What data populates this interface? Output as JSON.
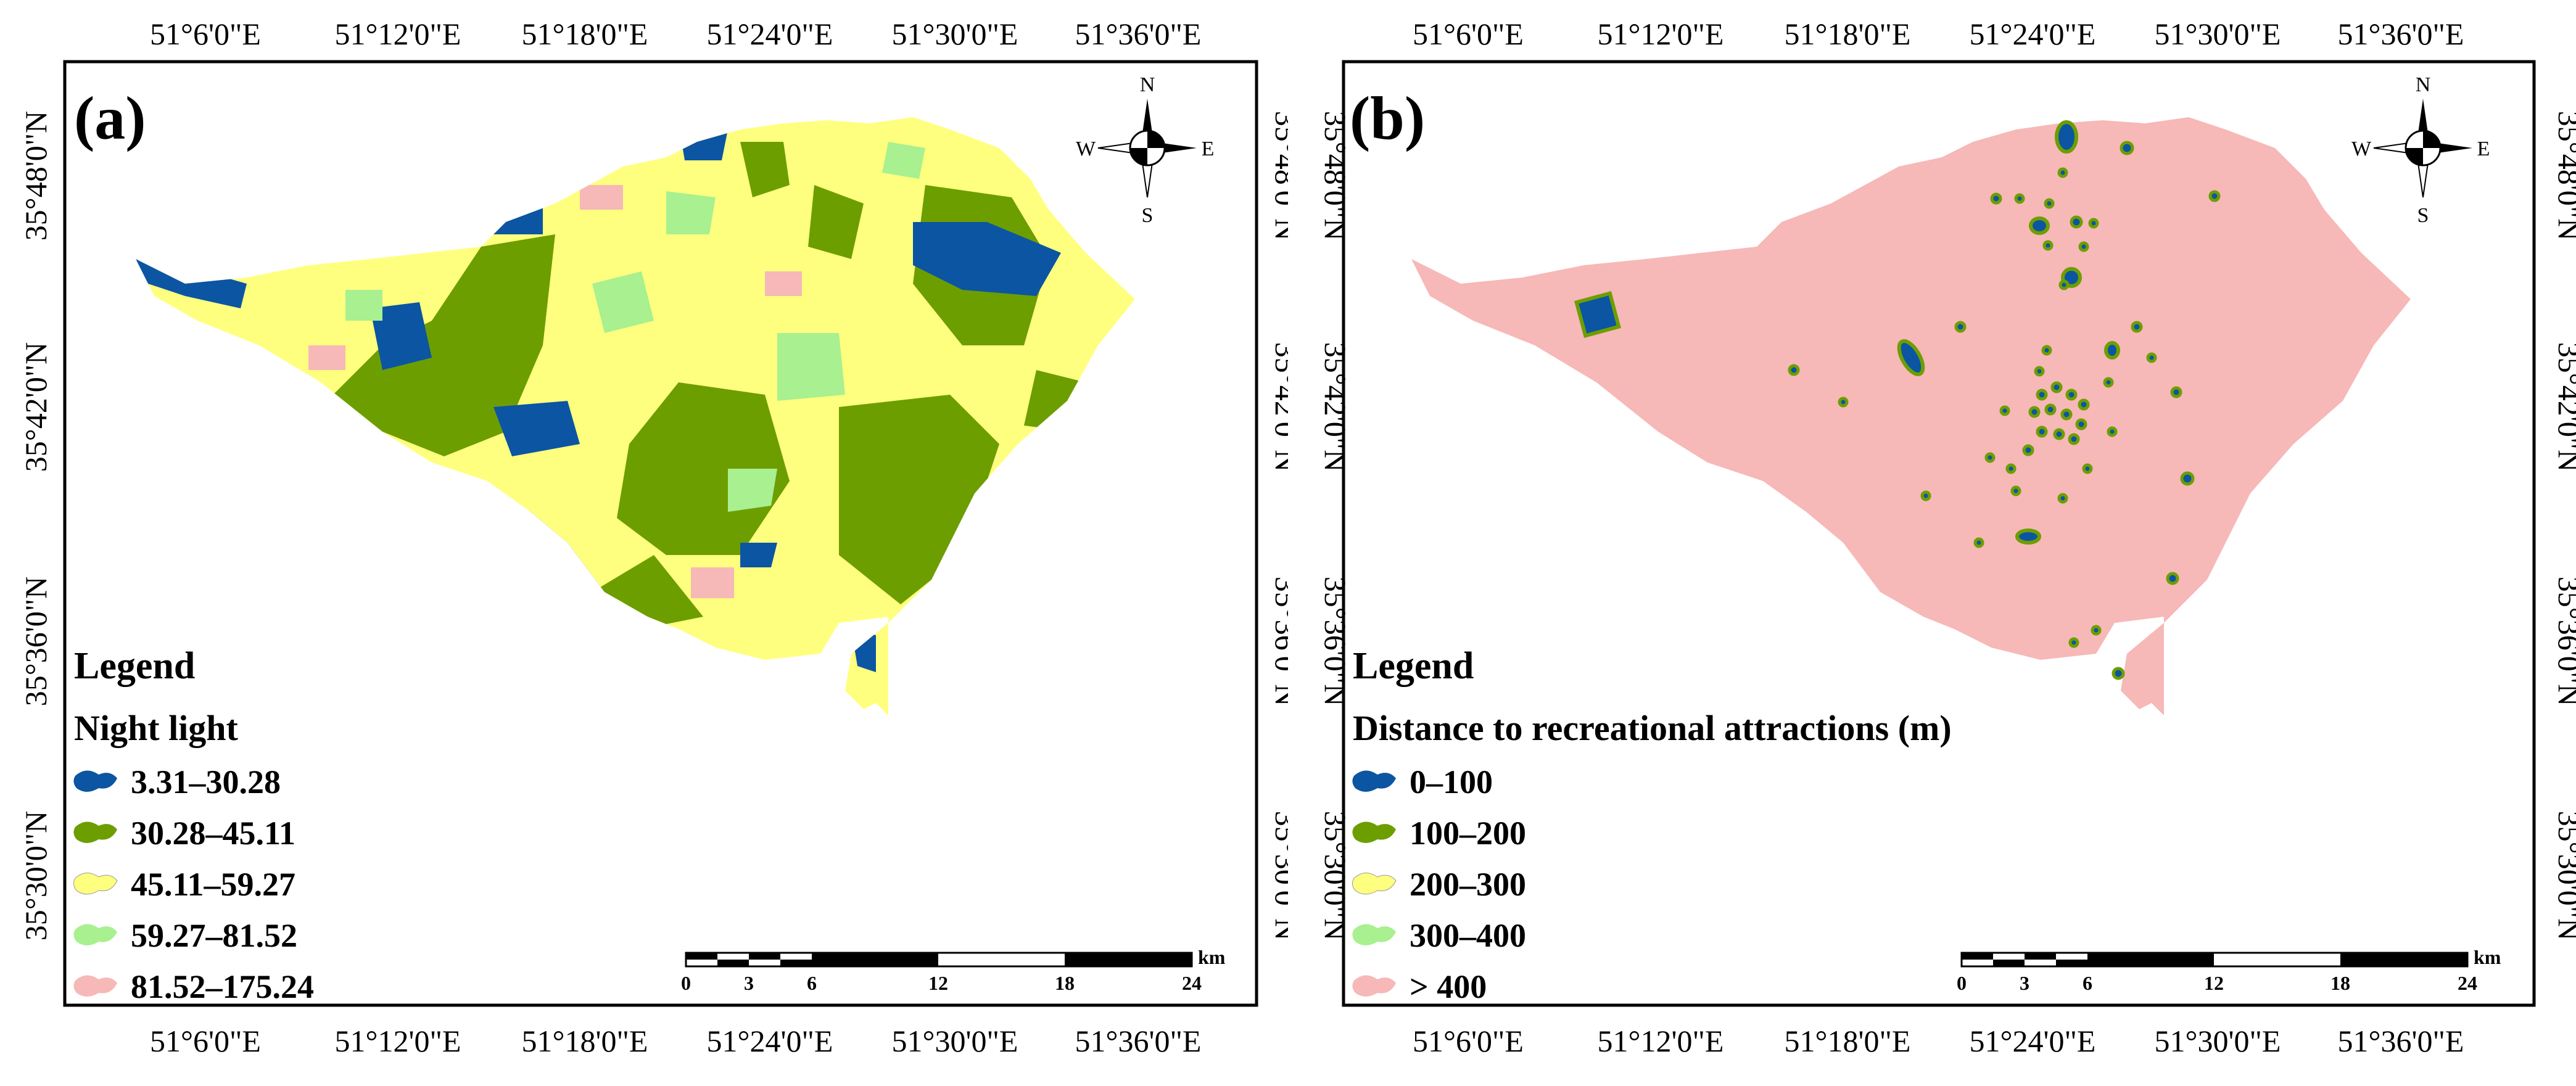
{
  "panels": [
    {
      "label": "(a)",
      "legend_title": "Legend",
      "legend_subtitle": "Night light",
      "legend_items": [
        {
          "label": "3.31–30.28",
          "color": "#0b55a3"
        },
        {
          "label": "30.28–45.11",
          "color": "#6d9e00"
        },
        {
          "label": "45.11–59.27",
          "color": "#ffff7f"
        },
        {
          "label": "59.27–81.52",
          "color": "#a8f090"
        },
        {
          "label": "81.52–175.24",
          "color": "#f7b8b8"
        }
      ]
    },
    {
      "label": "(b)",
      "legend_title": "Legend",
      "legend_subtitle": "Distance to recreational attractions (m)",
      "legend_items": [
        {
          "label": "0–100",
          "color": "#0b55a3"
        },
        {
          "label": "100–200",
          "color": "#6d9e00"
        },
        {
          "label": "200–300",
          "color": "#ffff7f"
        },
        {
          "label": "300–400",
          "color": "#a8f090"
        },
        {
          "label": "> 400",
          "color": "#f7b8b8"
        }
      ]
    }
  ],
  "longitude_labels": [
    "51°6'0\"E",
    "51°12'0\"E",
    "51°18'0\"E",
    "51°24'0\"E",
    "51°30'0\"E",
    "51°36'0\"E"
  ],
  "latitude_labels": [
    "35°48'0\"N",
    "35°42'0\"N",
    "35°36'0\"N",
    "35°30'0\"N"
  ],
  "compass": {
    "n": "N",
    "s": "S",
    "e": "E",
    "w": "W"
  },
  "scale_bar": {
    "unit": "km",
    "ticks": [
      "0",
      "3",
      "6",
      "12",
      "18",
      "24"
    ]
  }
}
